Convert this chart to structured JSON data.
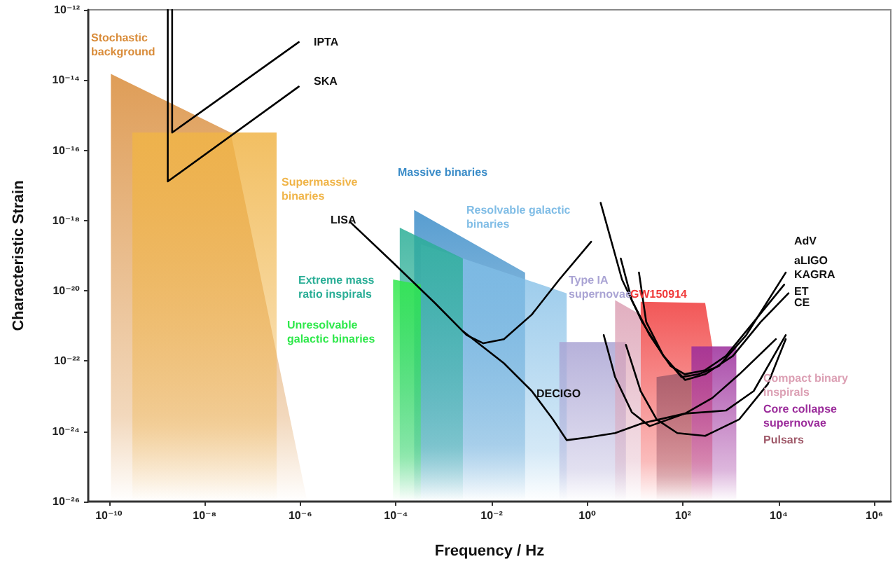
{
  "chart_data": {
    "type": "line",
    "xlabel": "Frequency / Hz",
    "ylabel": "Characteristic Strain",
    "log": "xy",
    "xlim": [
      3.7e-11,
      2200000.0
    ],
    "ylim": [
      1e-26,
      1e-12
    ],
    "xticks": [
      {
        "value": 1e-10,
        "label": "10⁻¹⁰"
      },
      {
        "value": 1e-08,
        "label": "10⁻⁸"
      },
      {
        "value": 1e-06,
        "label": "10⁻⁶"
      },
      {
        "value": 0.0001,
        "label": "10⁻⁴"
      },
      {
        "value": 0.01,
        "label": "10⁻²"
      },
      {
        "value": 1,
        "label": "10⁰"
      },
      {
        "value": 100,
        "label": "10²"
      },
      {
        "value": 10000,
        "label": "10⁴"
      },
      {
        "value": 1000000,
        "label": "10⁶"
      }
    ],
    "yticks": [
      {
        "value": 1e-26,
        "label": "10⁻²⁶"
      },
      {
        "value": 1e-24,
        "label": "10⁻²⁴"
      },
      {
        "value": 1e-22,
        "label": "10⁻²²"
      },
      {
        "value": 1e-20,
        "label": "10⁻²⁰"
      },
      {
        "value": 1e-18,
        "label": "10⁻¹⁸"
      },
      {
        "value": 1e-16,
        "label": "10⁻¹⁶"
      },
      {
        "value": 1e-14,
        "label": "10⁻¹⁴"
      },
      {
        "value": 1e-12,
        "label": "10⁻¹²"
      }
    ],
    "series": [
      {
        "type": "area",
        "color": "#d98c3a",
        "x": [
          1.1e-10,
          3.5e-08,
          1.4e-06
        ],
        "values": [
          1.5e-14,
          3.2e-16,
          1e-26
        ]
      },
      {
        "type": "area",
        "color": "#f0b447",
        "x": [
          3.1e-10,
          3.2e-07
        ],
        "values": [
          3.2e-16,
          3.2e-16
        ]
      },
      {
        "type": "area",
        "color": "#3a8cc8",
        "x": [
          0.00024,
          0.05
        ],
        "values": [
          2e-18,
          3.3e-20
        ]
      },
      {
        "type": "area",
        "color": "#80bde6",
        "x": [
          0.00033,
          0.37
        ],
        "values": [
          2.1e-19,
          8.5e-21
        ]
      },
      {
        "type": "area",
        "color": "#2aae96",
        "x": [
          0.00012,
          0.0025
        ],
        "values": [
          6.3e-19,
          8.3e-20
        ]
      },
      {
        "type": "area",
        "color": "#2ee84a",
        "x": [
          8.7e-05,
          0.00033
        ],
        "values": [
          2.1e-20,
          1.5e-20
        ]
      },
      {
        "type": "area",
        "color": "#aaa4d4",
        "x": [
          0.26,
          6.4
        ],
        "values": [
          3.5e-22,
          3.5e-22
        ]
      },
      {
        "type": "area",
        "color": "#f03a3a",
        "x": [
          13,
          290,
          410
        ],
        "values": [
          4.9e-21,
          4.5e-21,
          2.6e-22
        ]
      },
      {
        "type": "area",
        "color": "#dca0b4",
        "x": [
          3.8,
          13
        ],
        "values": [
          5.4e-21,
          2.1e-21
        ]
      },
      {
        "type": "area",
        "color": "#9b2c9b",
        "x": [
          150,
          1300
        ],
        "values": [
          2.6e-22,
          2.6e-22
        ]
      },
      {
        "type": "area",
        "color": "#a05a6a",
        "x": [
          28,
          150
        ],
        "values": [
          3.5e-23,
          5e-23
        ]
      },
      {
        "color": "#000000",
        "x": [
          2.1e-09,
          2.1e-09,
          9.3e-07
        ],
        "values": [
          1e-12,
          3.2e-16,
          1.2e-13
        ]
      },
      {
        "color": "#000000",
        "x": [
          1.7e-09,
          1.7e-09,
          9.3e-07
        ],
        "values": [
          1e-12,
          1.3e-17,
          6.5e-15
        ]
      },
      {
        "color": "#000000",
        "x": [
          1.1e-05,
          8.7e-05,
          0.00065,
          0.003,
          0.0067,
          0.018,
          0.069,
          0.26,
          1.2
        ],
        "values": [
          9.1e-19,
          6.3e-20,
          4.5e-21,
          5.5e-22,
          3.2e-22,
          4.2e-22,
          2.1e-21,
          2.1e-20,
          2.5e-19
        ]
      },
      {
        "color": "#000000",
        "x": [
          0.0025,
          0.018,
          0.069,
          0.19,
          0.37,
          1.0,
          3.8,
          14,
          110,
          410,
          1500,
          8700
        ],
        "values": [
          7.1e-22,
          8.7e-23,
          1.4e-23,
          2.2e-24,
          5.6e-25,
          6.7e-25,
          8.9e-25,
          1.7e-24,
          3.2e-24,
          8.9e-24,
          4.2e-23,
          4.2e-22
        ]
      },
      {
        "color": "#000000",
        "x": [
          1.9,
          5.3,
          14,
          39,
          93,
          210,
          560,
          2100,
          14000
        ],
        "values": [
          3.2e-18,
          2.1e-20,
          1.3e-21,
          1.4e-22,
          3.5e-23,
          4.2e-23,
          7.2e-23,
          5.5e-22,
          3.3e-20
        ]
      },
      {
        "color": "#000000",
        "x": [
          5.0,
          8.5,
          20,
          55,
          110,
          290,
          790,
          3000,
          13000
        ],
        "values": [
          8.3e-20,
          5.4e-21,
          5.5e-22,
          7.2e-23,
          4.2e-23,
          5.5e-23,
          1.4e-22,
          1.3e-21,
          1.5e-20
        ]
      },
      {
        "color": "#000000",
        "x": [
          12,
          17,
          39,
          110,
          290,
          1100,
          4200,
          16000
        ],
        "values": [
          3.3e-20,
          1.3e-21,
          1.4e-22,
          2.9e-23,
          4.2e-23,
          1.4e-22,
          1.3e-21,
          8.5e-21
        ]
      },
      {
        "color": "#000000",
        "x": [
          2.2,
          3.8,
          8.5,
          20,
          110,
          790,
          3000,
          14000
        ],
        "values": [
          5.5e-22,
          3.5e-23,
          3.5e-24,
          1.4e-24,
          3.2e-24,
          3.9e-24,
          1.4e-23,
          5.5e-22
        ]
      },
      {
        "color": "#000000",
        "x": [
          6.4,
          13,
          28,
          76,
          290,
          1500,
          5900,
          14000
        ],
        "values": [
          2.9e-22,
          1.4e-23,
          2.2e-24,
          8.9e-25,
          7.4e-25,
          2.2e-24,
          2.2e-23,
          4.2e-22
        ]
      }
    ],
    "annotations": [
      "Stochastic\nbackground",
      "Supermassive\nbinaries",
      "Massive binaries",
      "Resolvable galactic\nbinaries",
      "Extreme mass\nratio inspirals",
      "Unresolvable\ngalactic binaries",
      "Type IA\nsupernovae",
      "GW150914",
      "Compact binary\ninspirals",
      "Core collapse\nsupernovae",
      "Pulsars",
      "IPTA",
      "SKA",
      "LISA",
      "DECIGO",
      "AdV",
      "aLIGO",
      "KAGRA",
      "ET",
      "CE"
    ]
  }
}
